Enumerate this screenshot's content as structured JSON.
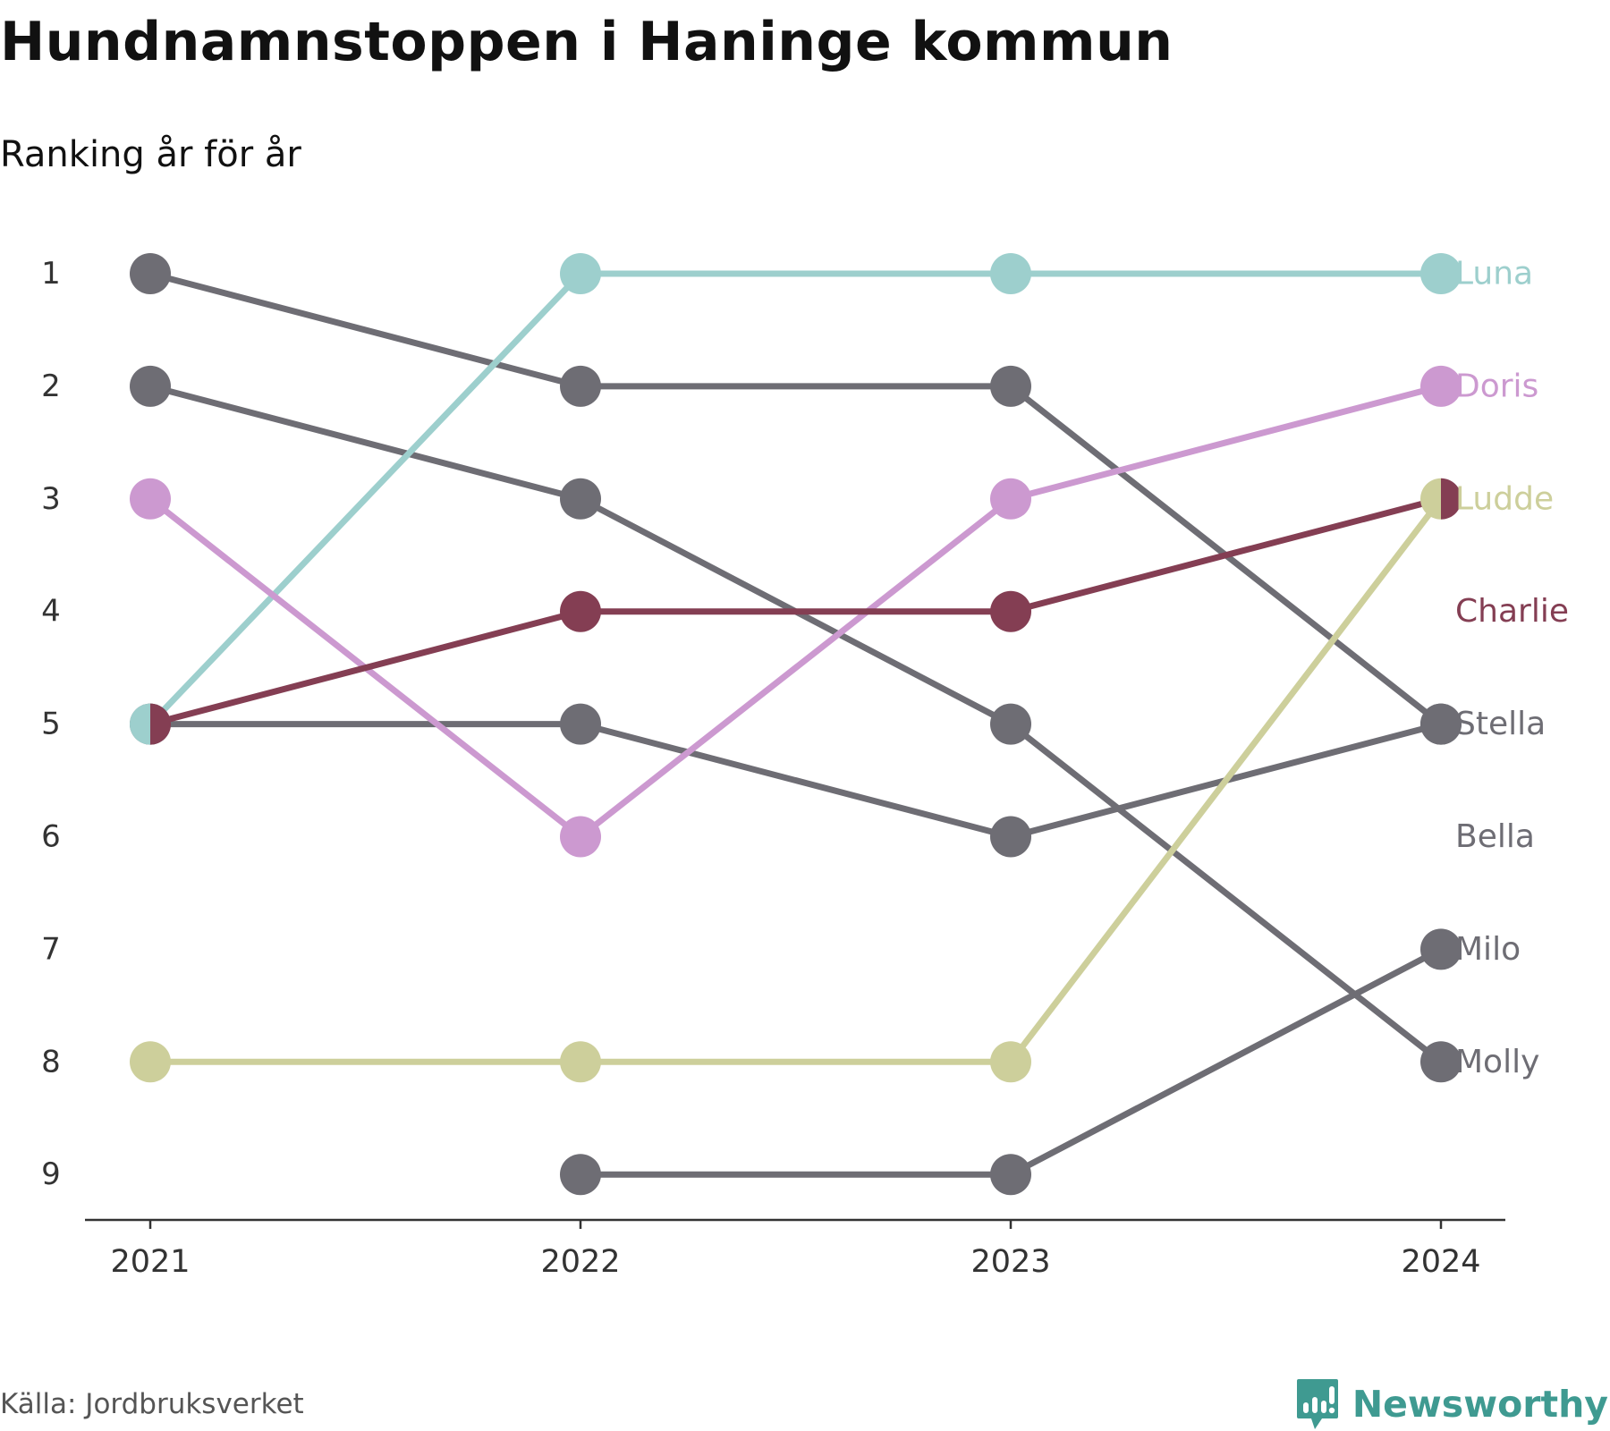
{
  "title": "Hundnamnstoppen i Haninge kommun",
  "subtitle": "Ranking år för år",
  "source": "Källa: Jordbruksverket",
  "brand": "Newsworthy",
  "colors": {
    "accent": "#3f9a91",
    "gray": "#6e6d74",
    "luna": "#9dcfcd",
    "doris": "#cc99d0",
    "ludde": "#cdcf9b",
    "charlie": "#843e53",
    "axis": "#333333",
    "tick_text": "#333333"
  },
  "chart_data": {
    "type": "line",
    "subtype": "bump",
    "title": "Hundnamnstoppen i Haninge kommun",
    "subtitle": "Ranking år för år",
    "x": [
      "2021",
      "2022",
      "2023",
      "2024"
    ],
    "y_ticks": [
      "1",
      "2",
      "3",
      "4",
      "5",
      "6",
      "7",
      "8",
      "9"
    ],
    "ylim": [
      1,
      9
    ],
    "y_inverted": true,
    "grid": false,
    "series": [
      {
        "name": "Luna",
        "color": "#9dcfcd",
        "values": [
          5,
          1,
          1,
          1
        ]
      },
      {
        "name": "Doris",
        "color": "#cc99d0",
        "values": [
          3,
          6,
          3,
          2
        ]
      },
      {
        "name": "Ludde",
        "color": "#cdcf9b",
        "values": [
          8,
          8,
          8,
          3
        ]
      },
      {
        "name": "Charlie",
        "color": "#843e53",
        "values": [
          5,
          4,
          4,
          3
        ]
      },
      {
        "name": "Stella",
        "color": "#6e6d74",
        "values": [
          1,
          2,
          2,
          5
        ]
      },
      {
        "name": "Bella",
        "color": "#6e6d74",
        "values": [
          5,
          5,
          6,
          5
        ]
      },
      {
        "name": "Milo",
        "color": "#6e6d74",
        "values": [
          null,
          9,
          9,
          7
        ]
      },
      {
        "name": "Molly",
        "color": "#6e6d74",
        "values": [
          2,
          3,
          5,
          8
        ]
      }
    ],
    "end_labels": [
      {
        "name": "Luna",
        "rank": 1,
        "color": "#9dcfcd"
      },
      {
        "name": "Doris",
        "rank": 2,
        "color": "#cc99d0"
      },
      {
        "name": "Ludde",
        "rank": 3,
        "color": "#cdcf9b"
      },
      {
        "name": "Charlie",
        "rank": 4,
        "color": "#843e53"
      },
      {
        "name": "Stella",
        "rank": 5,
        "color": "#6e6d74"
      },
      {
        "name": "Bella",
        "rank": 6,
        "color": "#6e6d74"
      },
      {
        "name": "Milo",
        "rank": 7,
        "color": "#6e6d74"
      },
      {
        "name": "Molly",
        "rank": 8,
        "color": "#6e6d74"
      }
    ]
  }
}
